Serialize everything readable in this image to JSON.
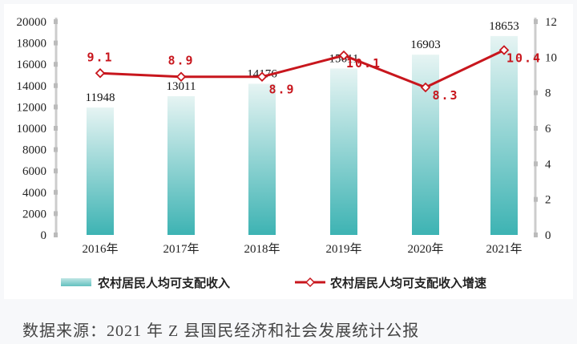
{
  "chart_data": {
    "type": "bar+line",
    "categories": [
      "2016年",
      "2017年",
      "2018年",
      "2019年",
      "2020年",
      "2021年"
    ],
    "series": [
      {
        "name": "农村居民人均可支配收入",
        "type": "bar",
        "axis": "left",
        "values": [
          11948,
          13011,
          14176,
          15611,
          16903,
          18653
        ],
        "color": "#5bbdbd"
      },
      {
        "name": "农村居民人均可支配收入增速",
        "type": "line",
        "axis": "right",
        "values": [
          9.1,
          8.9,
          8.9,
          10.1,
          8.3,
          10.4
        ],
        "color": "#c8161d"
      }
    ],
    "left_axis": {
      "ylim": [
        0,
        20000
      ],
      "ticks": [
        "0",
        "2000",
        "4000",
        "6000",
        "8000",
        "10000",
        "12000",
        "14000",
        "16000",
        "18000",
        "20000"
      ]
    },
    "right_axis": {
      "ylim": [
        0,
        12
      ],
      "ticks": [
        "0",
        "2",
        "4",
        "6",
        "8",
        "10",
        "12"
      ]
    },
    "legend": "bottom",
    "grid": false
  },
  "source": "数据来源：2021 年 Z 县国民经济和社会发展统计公报"
}
